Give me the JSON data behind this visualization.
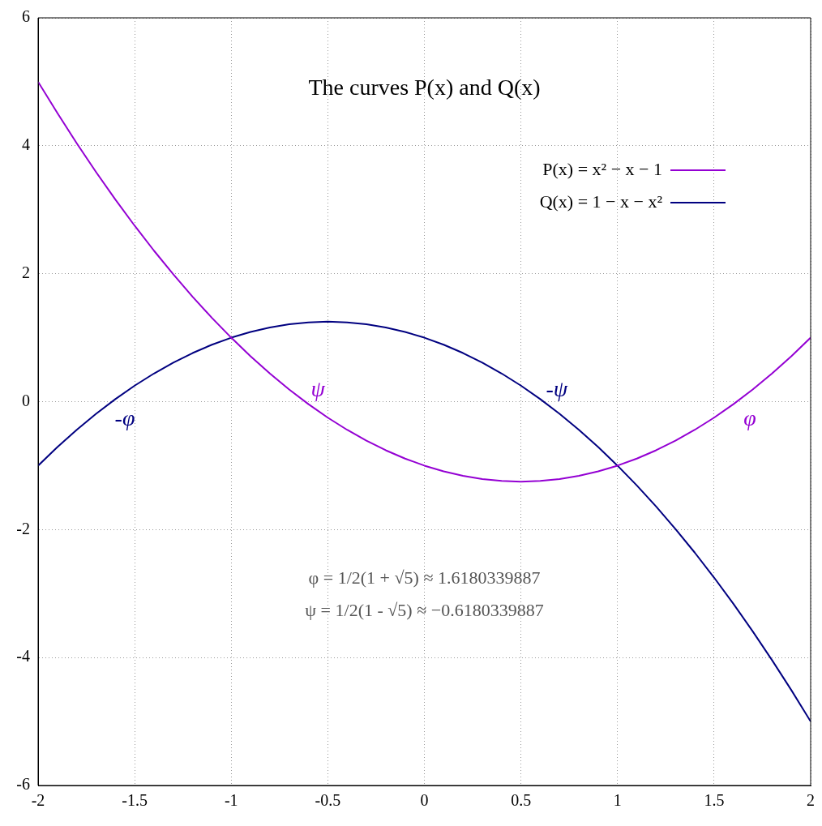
{
  "chart_data": {
    "type": "line",
    "title": "The curves P(x) and Q(x)",
    "x": [
      -2,
      -1.9,
      -1.8,
      -1.7,
      -1.6,
      -1.5,
      -1.4,
      -1.3,
      -1.2,
      -1.1,
      -1,
      -0.9,
      -0.8,
      -0.7,
      -0.6,
      -0.5,
      -0.4,
      -0.3,
      -0.2,
      -0.1,
      0,
      0.1,
      0.2,
      0.3,
      0.4,
      0.5,
      0.6,
      0.7,
      0.8,
      0.9,
      1,
      1.1,
      1.2,
      1.3,
      1.4,
      1.5,
      1.6,
      1.7,
      1.8,
      1.9,
      2
    ],
    "series": [
      {
        "name": "P(x) = x² − x − 1",
        "color": "#9400d3",
        "values": [
          5,
          4.51,
          4.04,
          3.59,
          3.16,
          2.75,
          2.36,
          1.99,
          1.64,
          1.31,
          1,
          0.71,
          0.44,
          0.19,
          -0.04,
          -0.25,
          -0.44,
          -0.61,
          -0.76,
          -0.89,
          -1,
          -1.09,
          -1.16,
          -1.21,
          -1.24,
          -1.25,
          -1.24,
          -1.21,
          -1.16,
          -1.09,
          -1,
          -0.89,
          -0.76,
          -0.61,
          -0.44,
          -0.25,
          -0.04,
          0.19,
          0.44,
          0.71,
          1
        ]
      },
      {
        "name": "Q(x) = 1 − x − x²",
        "color": "#000080",
        "values": [
          -1,
          -0.71,
          -0.44,
          -0.19,
          0.04,
          0.25,
          0.44,
          0.61,
          0.76,
          0.89,
          1,
          1.09,
          1.16,
          1.21,
          1.24,
          1.25,
          1.24,
          1.21,
          1.16,
          1.09,
          1,
          0.89,
          0.76,
          0.61,
          0.44,
          0.25,
          0.04,
          -0.19,
          -0.44,
          -0.71,
          -1,
          -1.31,
          -1.64,
          -1.99,
          -2.36,
          -2.75,
          -3.16,
          -3.59,
          -4.04,
          -4.51,
          -5
        ]
      }
    ],
    "xlim": [
      -2,
      2
    ],
    "xticks": [
      -2,
      -1.5,
      -1,
      -0.5,
      0,
      0.5,
      1,
      1.5,
      2
    ],
    "ylim": [
      -6,
      6
    ],
    "yticks": [
      -6,
      -4,
      -2,
      0,
      2,
      4,
      6
    ],
    "grid": true,
    "legend": "top right",
    "marker": "none",
    "line_style": "solid",
    "annotations": [
      {
        "text": "-φ",
        "x": -1.618,
        "y": 0
      },
      {
        "text": "ψ",
        "x": -0.618,
        "y": 0
      },
      {
        "text": "-ψ",
        "x": 0.618,
        "y": 0
      },
      {
        "text": "φ",
        "x": 1.618,
        "y": 0
      },
      "φ = 1/2(1 + √5) ≈ 1.6180339887",
      "ψ = 1/2(1 - √5) ≈ −0.6180339887"
    ]
  }
}
